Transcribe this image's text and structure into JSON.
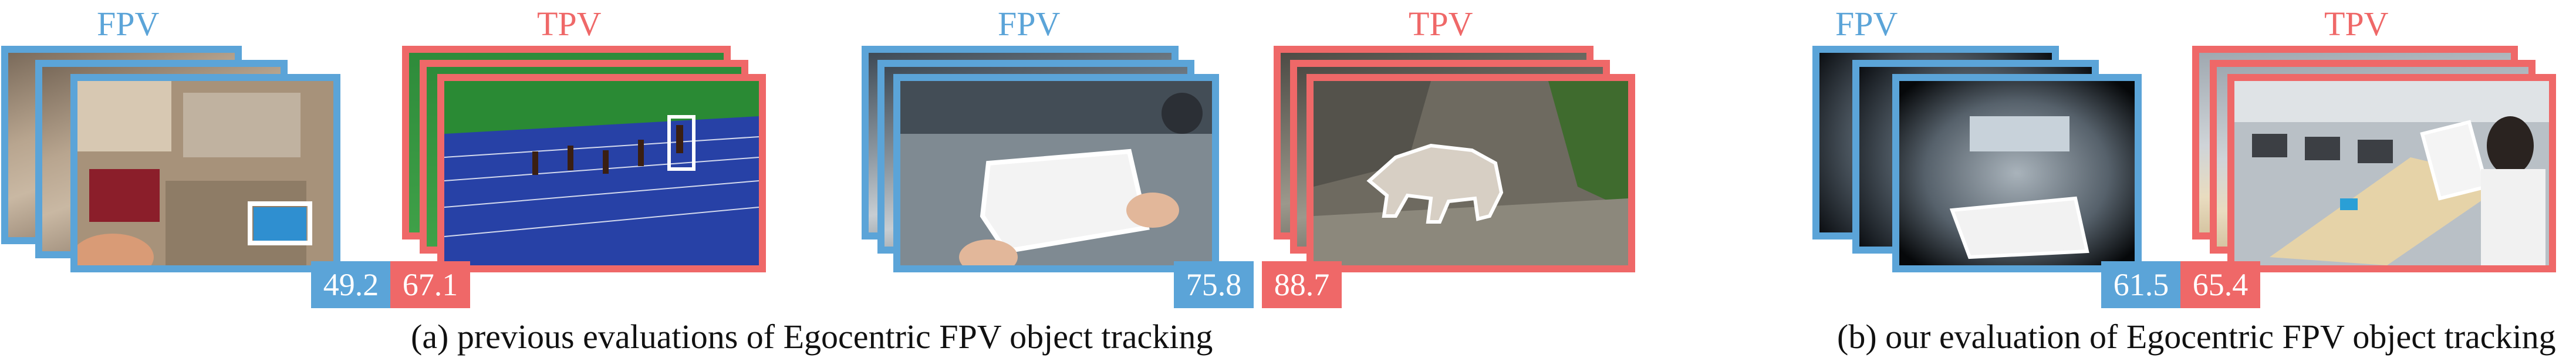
{
  "panels": [
    {
      "groups": [
        {
          "view_label": "FPV",
          "score": "49.2"
        },
        {
          "view_label": "TPV",
          "score": "67.1"
        },
        {
          "view_label": "FPV",
          "score": "75.8"
        },
        {
          "view_label": "TPV",
          "score": "88.7"
        }
      ],
      "caption": "(a) previous evaluations of Egocentric FPV object tracking"
    },
    {
      "groups": [
        {
          "view_label": "FPV",
          "score": "61.5"
        },
        {
          "view_label": "TPV",
          "score": "65.4"
        }
      ],
      "caption": "(b) our evaluation of Egocentric FPV object tracking"
    }
  ],
  "colors": {
    "fpv": "#5ba4d8",
    "tpv": "#ef6868",
    "box": "#ffffff"
  },
  "scenes": [
    "first-person cluttered room with tracked blue object",
    "sprinters on a blue running track with tracked athlete",
    "hands holding a clear plastic container",
    "bear walking on rocks",
    "wide-angle first-person view of a classroom with tracked sheet",
    "third-person view of a person holding a sheet at a table"
  ]
}
